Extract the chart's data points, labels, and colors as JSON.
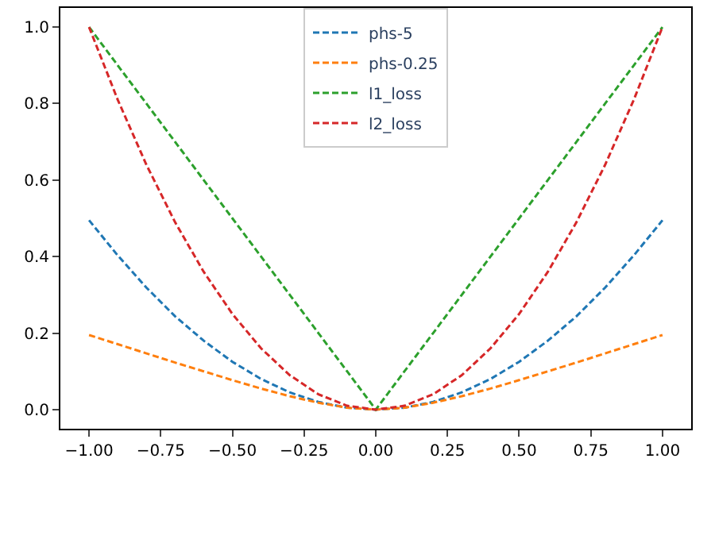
{
  "chart_data": {
    "type": "line",
    "x": [
      -1.0,
      -0.9,
      -0.8,
      -0.7,
      -0.6,
      -0.5,
      -0.4,
      -0.3,
      -0.2,
      -0.1,
      0.0,
      0.1,
      0.2,
      0.3,
      0.4,
      0.5,
      0.6,
      0.7,
      0.8,
      0.9,
      1.0
    ],
    "series": [
      {
        "name": "phs-5",
        "color": "#1f77b4",
        "values": [
          0.495,
          0.403,
          0.319,
          0.244,
          0.18,
          0.125,
          0.08,
          0.045,
          0.02,
          0.005,
          0.0,
          0.005,
          0.02,
          0.045,
          0.08,
          0.125,
          0.18,
          0.244,
          0.319,
          0.403,
          0.495
        ]
      },
      {
        "name": "phs-0.25",
        "color": "#ff7f0e",
        "values": [
          0.195,
          0.171,
          0.147,
          0.123,
          0.1,
          0.077,
          0.055,
          0.035,
          0.018,
          0.005,
          0.0,
          0.005,
          0.018,
          0.035,
          0.055,
          0.077,
          0.1,
          0.123,
          0.147,
          0.171,
          0.195
        ]
      },
      {
        "name": "l1_loss",
        "color": "#2ca02c",
        "values": [
          1.0,
          0.9,
          0.8,
          0.7,
          0.6,
          0.5,
          0.4,
          0.3,
          0.2,
          0.1,
          0.0,
          0.1,
          0.2,
          0.3,
          0.4,
          0.5,
          0.6,
          0.7,
          0.8,
          0.9,
          1.0
        ]
      },
      {
        "name": "l2_loss",
        "color": "#d62728",
        "values": [
          1.0,
          0.81,
          0.64,
          0.49,
          0.36,
          0.25,
          0.16,
          0.09,
          0.04,
          0.01,
          0.0,
          0.01,
          0.04,
          0.09,
          0.16,
          0.25,
          0.36,
          0.49,
          0.64,
          0.81,
          1.0
        ]
      }
    ],
    "xlim": [
      -1.1,
      1.1
    ],
    "ylim": [
      -0.05,
      1.05
    ],
    "xticks": [
      {
        "value": -1.0,
        "label": "−1.00"
      },
      {
        "value": -0.75,
        "label": "−0.75"
      },
      {
        "value": -0.5,
        "label": "−0.50"
      },
      {
        "value": -0.25,
        "label": "−0.25"
      },
      {
        "value": 0.0,
        "label": "0.00"
      },
      {
        "value": 0.25,
        "label": "0.25"
      },
      {
        "value": 0.5,
        "label": "0.50"
      },
      {
        "value": 0.75,
        "label": "0.75"
      },
      {
        "value": 1.0,
        "label": "1.00"
      }
    ],
    "yticks": [
      {
        "value": 0.0,
        "label": "0.0"
      },
      {
        "value": 0.2,
        "label": "0.2"
      },
      {
        "value": 0.4,
        "label": "0.4"
      },
      {
        "value": 0.6,
        "label": "0.6"
      },
      {
        "value": 0.8,
        "label": "0.8"
      },
      {
        "value": 1.0,
        "label": "1.0"
      }
    ],
    "legend": "top",
    "marker": "none",
    "line_style": "dashed"
  }
}
